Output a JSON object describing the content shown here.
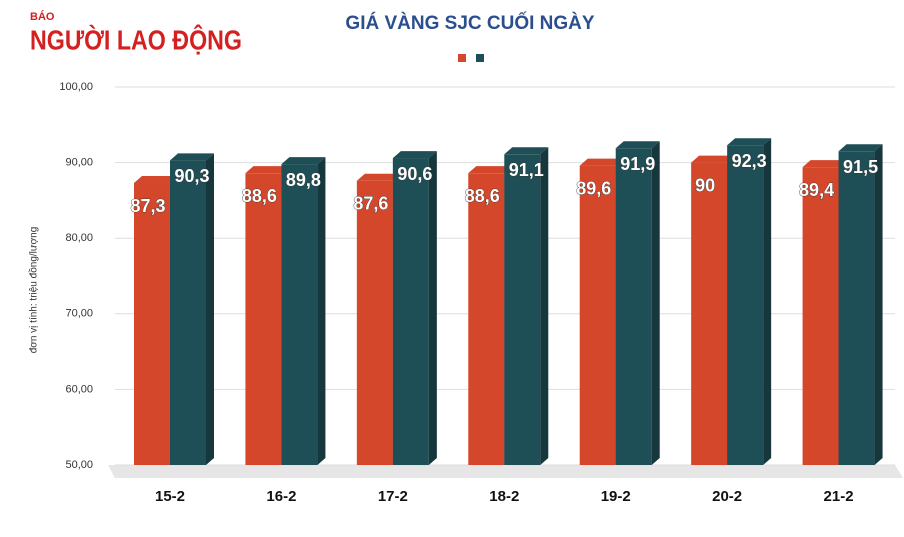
{
  "logo": {
    "small": "BÁO",
    "name": "NGƯỜI LAO ĐỘNG"
  },
  "chart_data": {
    "type": "bar3d",
    "title": "GIÁ VÀNG SJC CUỐI NGÀY",
    "y_label": "đơn vị tính: triệu đồng/lượng",
    "categories": [
      "15-2",
      "16-2",
      "17-2",
      "18-2",
      "19-2",
      "20-2",
      "21-2"
    ],
    "series": [
      {
        "color": "#d4472b",
        "values": [
          87.3,
          88.6,
          87.6,
          88.6,
          89.6,
          90,
          89.4
        ],
        "value_labels": [
          "87,3",
          "88,6",
          "87,6",
          "88,6",
          "89,6",
          "90",
          "89,4"
        ]
      },
      {
        "color": "#1f4f56",
        "values": [
          90.3,
          89.8,
          90.6,
          91.1,
          91.9,
          92.3,
          91.5
        ],
        "value_labels": [
          "90,3",
          "89,8",
          "90,6",
          "91,1",
          "91,9",
          "92,3",
          "91,5"
        ]
      }
    ],
    "ylim": [
      50,
      100
    ],
    "yticks": [
      {
        "value": 50,
        "label": "50,00"
      },
      {
        "value": 60,
        "label": "60,00"
      },
      {
        "value": 70,
        "label": "70,00"
      },
      {
        "value": 80,
        "label": "80,00"
      },
      {
        "value": 90,
        "label": "90,00"
      },
      {
        "value": 100,
        "label": "100,00"
      }
    ],
    "grid": true
  }
}
